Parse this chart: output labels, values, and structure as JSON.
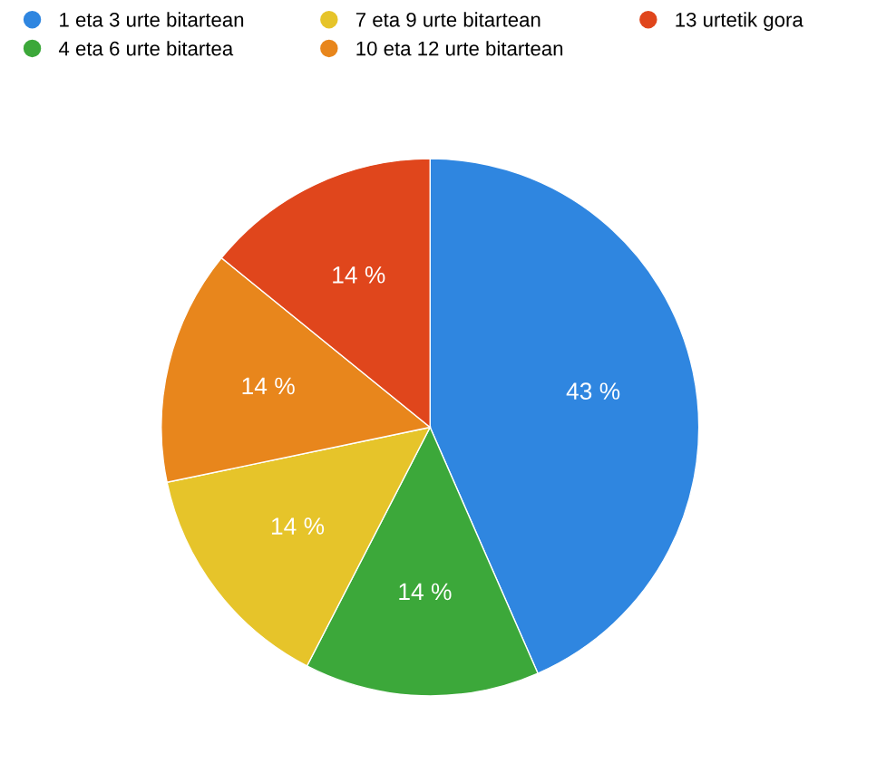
{
  "chart_data": {
    "type": "pie",
    "categories": [
      "1 eta 3 urte bitartean",
      "4 eta 6 urte bitartea",
      "7 eta 9 urte bitartean",
      "10 eta 12 urte bitartean",
      "13 urtetik gora"
    ],
    "values": [
      43,
      14,
      14,
      14,
      14
    ],
    "colors": [
      "#2f86e0",
      "#3ca83a",
      "#e6c42a",
      "#e8861c",
      "#e0461c"
    ],
    "value_labels": [
      "43 %",
      "14 %",
      "14 %",
      "14 %",
      "14 %"
    ],
    "legend": "top left"
  }
}
